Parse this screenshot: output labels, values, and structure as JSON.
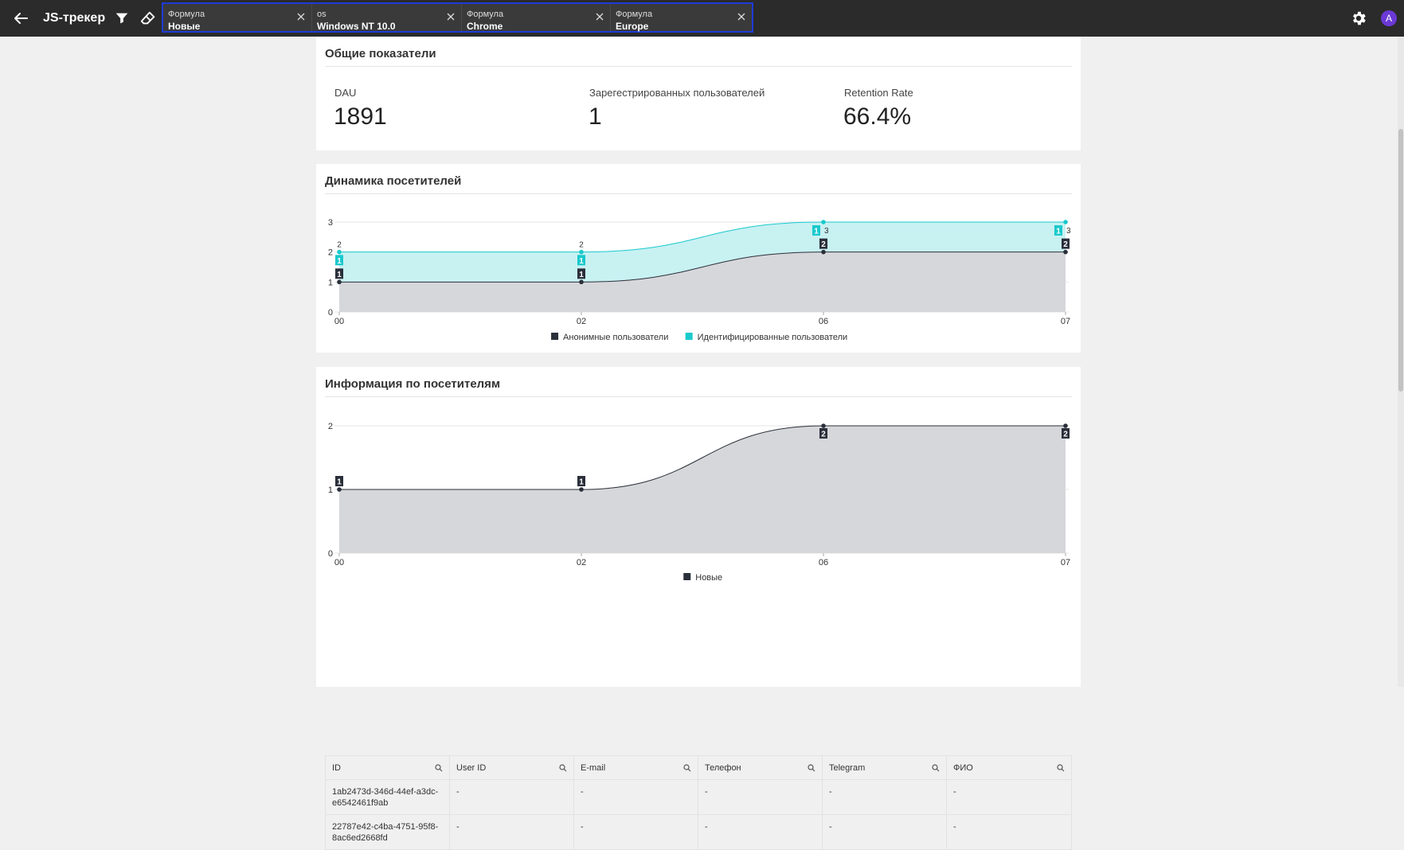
{
  "app": {
    "title": "JS-трекер"
  },
  "filters": [
    {
      "label": "Формула",
      "value": "Новые"
    },
    {
      "label": "os",
      "value": "Windows NT 10.0"
    },
    {
      "label": "Формула",
      "value": "Chrome"
    },
    {
      "label": "Формула",
      "value": "Europe"
    }
  ],
  "user": {
    "avatar_letter": "A"
  },
  "summary": {
    "title": "Общие показатели",
    "kpis": [
      {
        "label": "DAU",
        "value": "1891"
      },
      {
        "label": "Зарегестрированных пользователей",
        "value": "1"
      },
      {
        "label": "Retention Rate",
        "value": "66.4%"
      }
    ]
  },
  "dynamics": {
    "title": "Динамика посетителей"
  },
  "info": {
    "title": "Информация по посетителям"
  },
  "chart_data": [
    {
      "type": "area",
      "stacked": true,
      "categories": [
        "00",
        "02",
        "06",
        "07"
      ],
      "series": [
        {
          "name": "Анонимные пользователи",
          "values": [
            1,
            1,
            2,
            2
          ],
          "color": "#2a2f3a",
          "fill": "#d6d7da"
        },
        {
          "name": "Идентифицированные пользователи",
          "values": [
            1,
            1,
            1,
            1
          ],
          "color": "#19c9cc",
          "fill": "#c8f1f2"
        }
      ],
      "totals": [
        2,
        2,
        3,
        3
      ],
      "y_ticks": [
        0,
        1,
        2,
        3
      ],
      "ylim": [
        0,
        3
      ],
      "grid": true,
      "legend": "bottom"
    },
    {
      "type": "area",
      "categories": [
        "00",
        "02",
        "06",
        "07"
      ],
      "series": [
        {
          "name": "Новые",
          "values": [
            1,
            1,
            2,
            2
          ],
          "color": "#2a2f3a",
          "fill": "#d6d7da"
        }
      ],
      "y_ticks": [
        0,
        1,
        2
      ],
      "ylim": [
        0,
        2
      ],
      "grid": true,
      "legend": "bottom"
    }
  ],
  "table": {
    "columns": [
      "ID",
      "User ID",
      "E-mail",
      "Телефон",
      "Telegram",
      "ФИО"
    ],
    "rows": [
      [
        "1ab2473d-346d-44ef-a3dc-e6542461f9ab",
        "-",
        "-",
        "-",
        "-",
        "-"
      ],
      [
        "22787e42-c4ba-4751-95f8-8ac6ed2668fd",
        "-",
        "-",
        "-",
        "-",
        "-"
      ]
    ]
  },
  "icons": {
    "back": "arrow-left-icon",
    "filter": "filter-icon",
    "clear": "eraser-icon",
    "close": "close-icon",
    "settings": "gear-icon",
    "search": "search-icon"
  }
}
